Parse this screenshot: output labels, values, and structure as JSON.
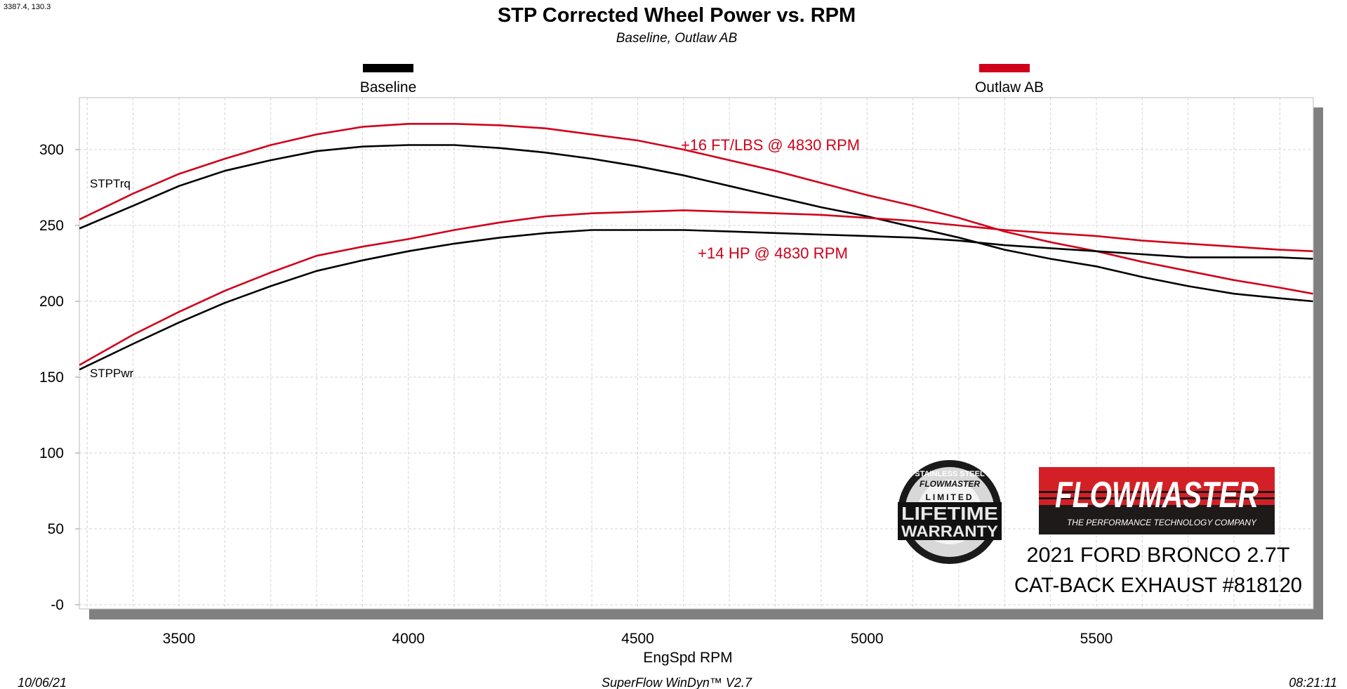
{
  "cursor_readout": "3387.4, 130.3",
  "footer": {
    "date": "10/06/21",
    "software": "SuperFlow WinDyn™ V2.7",
    "time": "08:21:11"
  },
  "logos": {
    "warranty": "STAINLESS STEEL FLOWMASTER LIMITED LIFETIME WARRANTY",
    "brand": "FLOWMASTER",
    "brand_tagline": "THE PERFORMANCE TECHNOLOGY COMPANY"
  },
  "vehicle": {
    "line1": "2021 FORD BRONCO 2.7T",
    "line2": "CAT-BACK EXHAUST #818120"
  },
  "colors": {
    "baseline": "#000000",
    "outlaw": "#d0021b",
    "shadow": "#808080",
    "grid": "#cccccc"
  },
  "chart_data": {
    "type": "line",
    "title": "STP Corrected Wheel Power vs. RPM",
    "subtitle": "Baseline, Outlaw AB",
    "xlabel": "EngSpd  RPM",
    "ylabel": "",
    "xlim": [
      3283,
      5973
    ],
    "ylim": [
      -5,
      334
    ],
    "xticks": [
      3500,
      4000,
      4500,
      5000,
      5500
    ],
    "yticks": [
      0,
      50,
      100,
      150,
      200,
      250,
      300
    ],
    "ytick_labels": [
      "-0",
      "50",
      "100",
      "150",
      "200",
      "250",
      "300"
    ],
    "grid": true,
    "legend": [
      {
        "name": "Baseline",
        "color": "#000000"
      },
      {
        "name": "Outlaw AB",
        "color": "#d0021b"
      }
    ],
    "legend_placement": "top",
    "curve_labels": {
      "torque": "STPTrq",
      "power": "STPPwr"
    },
    "annotations": [
      "+16 FT/LBS @ 4830 RPM",
      "+14 HP @ 4830 RPM"
    ],
    "x": [
      3283,
      3400,
      3500,
      3600,
      3700,
      3800,
      3900,
      4000,
      4100,
      4200,
      4300,
      4400,
      4500,
      4600,
      4700,
      4800,
      4900,
      5000,
      5100,
      5200,
      5300,
      5400,
      5500,
      5600,
      5700,
      5800,
      5900,
      5972
    ],
    "series": [
      {
        "name": "Outlaw AB",
        "metric": "STPTrq",
        "color": "#d0021b",
        "values": [
          254,
          271,
          284,
          294,
          303,
          310,
          315,
          317,
          317,
          316,
          314,
          310,
          306,
          300,
          293,
          286,
          278,
          270,
          263,
          255,
          246,
          239,
          233,
          226,
          220,
          214,
          209,
          205
        ]
      },
      {
        "name": "Baseline",
        "metric": "STPTrq",
        "color": "#000000",
        "values": [
          248,
          263,
          276,
          286,
          293,
          299,
          302,
          303,
          303,
          301,
          298,
          294,
          289,
          283,
          276,
          269,
          262,
          256,
          249,
          242,
          234,
          228,
          223,
          216,
          210,
          205,
          202,
          200
        ]
      },
      {
        "name": "Outlaw AB",
        "metric": "STPPwr",
        "color": "#d0021b",
        "values": [
          158,
          178,
          193,
          207,
          219,
          230,
          236,
          241,
          247,
          252,
          256,
          258,
          259,
          260,
          259,
          258,
          257,
          255,
          253,
          250,
          247,
          245,
          243,
          240,
          238,
          236,
          234,
          233
        ]
      },
      {
        "name": "Baseline",
        "metric": "STPPwr",
        "color": "#000000",
        "values": [
          155,
          172,
          186,
          199,
          210,
          220,
          227,
          233,
          238,
          242,
          245,
          247,
          247,
          247,
          246,
          245,
          244,
          243,
          242,
          240,
          237,
          235,
          233,
          231,
          229,
          229,
          229,
          228
        ]
      }
    ]
  }
}
